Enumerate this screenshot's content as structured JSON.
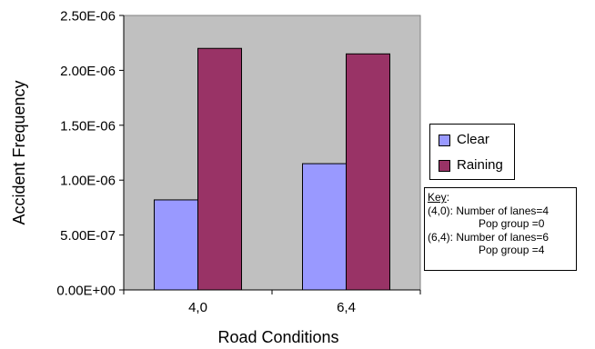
{
  "chart_data": {
    "type": "bar",
    "categories": [
      "4,0",
      "6,4"
    ],
    "series": [
      {
        "name": "Clear",
        "values": [
          8.2e-07,
          1.15e-06
        ],
        "color": "#9999ff"
      },
      {
        "name": "Raining",
        "values": [
          2.2e-06,
          2.15e-06
        ],
        "color": "#993366"
      }
    ],
    "xlabel": "Road Conditions",
    "ylabel": "Accident Frequency",
    "ylim": [
      0,
      2.5e-06
    ],
    "yticks": [
      {
        "value": 0,
        "label": "0.00E+00"
      },
      {
        "value": 5e-07,
        "label": "5.00E-07"
      },
      {
        "value": 1e-06,
        "label": "1.00E-06"
      },
      {
        "value": 1.5e-06,
        "label": "1.50E-06"
      },
      {
        "value": 2e-06,
        "label": "2.00E-06"
      },
      {
        "value": 2.5e-06,
        "label": "2.50E-06"
      }
    ],
    "plot_background": "#c0c0c0",
    "grid": false,
    "legend_position": "right"
  },
  "key": {
    "title": "Key",
    "title_suffix": ":",
    "line1": "(4,0): Number of lanes=4",
    "line2": "Pop group =0",
    "line3": "(6,4): Number of lanes=6",
    "line4": "Pop group =4"
  }
}
